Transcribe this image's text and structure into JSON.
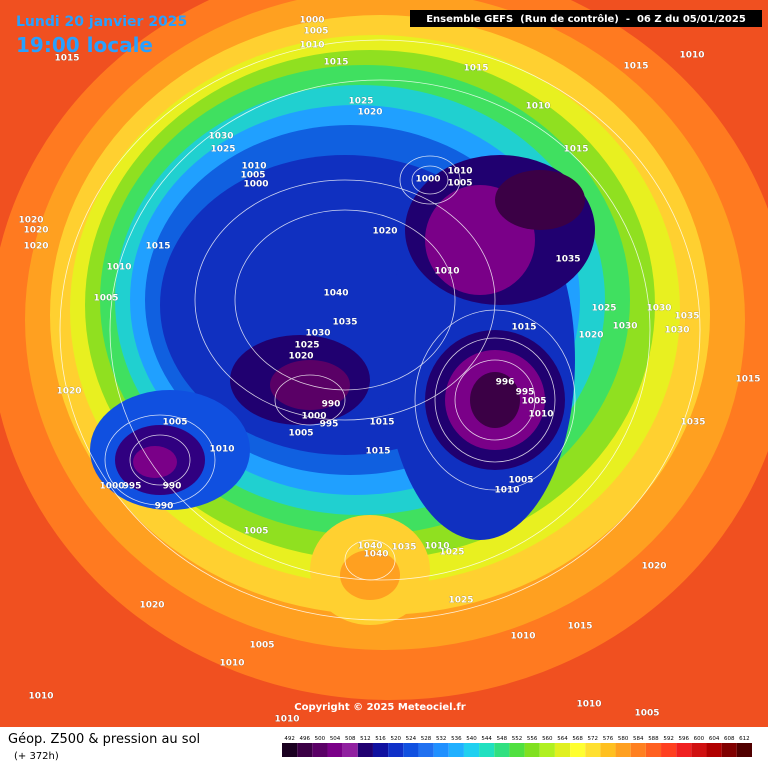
{
  "header": {
    "date": "Lundi 20 janvier 2025",
    "time": "19:00 locale",
    "run": "Ensemble GEFS  (Run de contrôle)  -  06 Z du 05/01/2025"
  },
  "footer": {
    "title": "Géop. Z500 & pression au sol",
    "lead": "(+ 372h)",
    "copyright": "Copyright © 2025 Meteociel.fr"
  },
  "colorbar": {
    "values": [
      492,
      496,
      500,
      504,
      508,
      512,
      516,
      520,
      524,
      528,
      532,
      536,
      540,
      544,
      548,
      552,
      556,
      560,
      564,
      568,
      572,
      576,
      580,
      584,
      588,
      592,
      596,
      600,
      604,
      608,
      612
    ],
    "colors": [
      "#1a0020",
      "#3b0045",
      "#5a0066",
      "#7a0088",
      "#9020a0",
      "#200070",
      "#1010a0",
      "#1030c8",
      "#1050e0",
      "#2070f0",
      "#2090ff",
      "#20b0ff",
      "#20d0f0",
      "#20e0c0",
      "#30e080",
      "#50e040",
      "#80e020",
      "#b0f020",
      "#e0f020",
      "#ffff30",
      "#ffe030",
      "#ffc020",
      "#ffa020",
      "#ff8020",
      "#ff6020",
      "#ff4020",
      "#f02020",
      "#d01010",
      "#b00000",
      "#800000",
      "#500000"
    ]
  },
  "isobar_labels": [
    "1000",
    "1005",
    "1010",
    "1015",
    "1015",
    "1015",
    "1015",
    "1010",
    "1010",
    "1025",
    "1020",
    "1030",
    "1025",
    "1010",
    "1005",
    "1000",
    "1015",
    "1010",
    "1000",
    "1005",
    "1020",
    "1020",
    "1020",
    "1015",
    "1010",
    "1020",
    "1035",
    "1010",
    "1005",
    "1040",
    "1035",
    "1030",
    "1025",
    "1020",
    "1015",
    "1025",
    "1020",
    "1030",
    "1030",
    "1030",
    "1035",
    "1015",
    "1020",
    "990",
    "1000",
    "995",
    "1005",
    "1015",
    "996",
    "995",
    "1005",
    "1010",
    "1035",
    "1005",
    "1010",
    "1015",
    "1005",
    "1010",
    "1000",
    "995",
    "990",
    "990",
    "1005",
    "1040",
    "1040",
    "1035",
    "1010",
    "1025",
    "1020",
    "1025",
    "1015",
    "1010",
    "1020",
    "1005",
    "1010",
    "1010",
    "1010",
    "1005",
    "1010"
  ]
}
